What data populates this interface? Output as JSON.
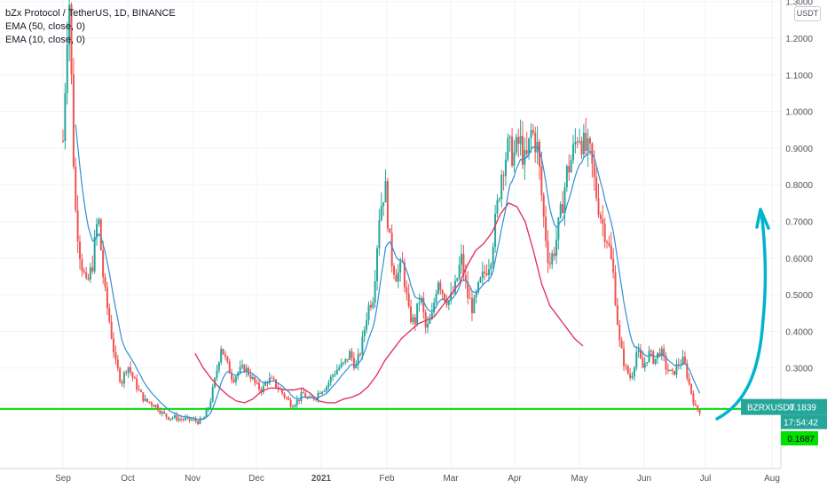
{
  "legend": {
    "title": "bZx Protocol / TetherUS, 1D, BINANCE",
    "ema50": "EMA (50, close, 0)",
    "ema10": "EMA (10, close, 0)"
  },
  "currency_label": "USDT",
  "symbol_tag": "BZRXUSDT",
  "price_tag": "0.1839",
  "countdown": "17:54:42",
  "support_tag": "0.1687",
  "colors": {
    "up": "#26a69a",
    "down": "#ef5350",
    "ema50": "#e0385f",
    "ema10": "#2f8fd6",
    "support": "#00e100",
    "annotation": "#00b5c9",
    "price_tag": "#26a69a",
    "support_tag": "#00e100"
  },
  "chart_data": {
    "type": "candlestick",
    "y_ticks": [
      "0.2000",
      "0.3000",
      "0.4000",
      "0.5000",
      "0.6000",
      "0.7000",
      "0.8000",
      "0.9000",
      "1.0000",
      "1.1000",
      "1.2000",
      "1.3000"
    ],
    "x_ticks": [
      "Sep",
      "Oct",
      "Nov",
      "Dec",
      "2021",
      "Feb",
      "Mar",
      "Apr",
      "May",
      "Jun",
      "Jul",
      "Aug"
    ],
    "ylim": [
      0.16,
      1.3
    ],
    "support_level": 0.1687,
    "last_price": 0.1839,
    "close_series": [
      [
        0,
        0.92
      ],
      [
        0.5,
        1.35
      ],
      [
        1,
        0.75
      ],
      [
        1.5,
        0.6
      ],
      [
        2,
        0.52
      ],
      [
        2.5,
        0.58
      ],
      [
        3,
        0.72
      ],
      [
        3.5,
        0.52
      ],
      [
        4,
        0.42
      ],
      [
        4.5,
        0.31
      ],
      [
        5,
        0.26
      ],
      [
        5.5,
        0.31
      ],
      [
        6,
        0.27
      ],
      [
        6.5,
        0.235
      ],
      [
        7,
        0.21
      ],
      [
        7.5,
        0.205
      ],
      [
        8,
        0.195
      ],
      [
        8.5,
        0.175
      ],
      [
        9,
        0.165
      ],
      [
        9.5,
        0.165
      ],
      [
        10,
        0.16
      ],
      [
        10.5,
        0.16
      ],
      [
        11,
        0.158
      ],
      [
        11.5,
        0.153
      ],
      [
        12,
        0.16
      ],
      [
        12.5,
        0.2
      ],
      [
        13,
        0.27
      ],
      [
        13.5,
        0.36
      ],
      [
        14,
        0.31
      ],
      [
        14.5,
        0.27
      ],
      [
        15,
        0.29
      ],
      [
        15.5,
        0.3
      ],
      [
        16,
        0.28
      ],
      [
        16.5,
        0.25
      ],
      [
        17,
        0.24
      ],
      [
        17.5,
        0.27
      ],
      [
        18,
        0.26
      ],
      [
        18.5,
        0.24
      ],
      [
        19,
        0.22
      ],
      [
        19.5,
        0.2
      ],
      [
        20,
        0.21
      ],
      [
        20.5,
        0.23
      ],
      [
        21,
        0.21
      ],
      [
        21.5,
        0.22
      ],
      [
        22,
        0.24
      ],
      [
        22.5,
        0.25
      ],
      [
        23,
        0.28
      ],
      [
        23.5,
        0.3
      ],
      [
        24,
        0.31
      ],
      [
        24.5,
        0.34
      ],
      [
        25,
        0.3
      ],
      [
        25.5,
        0.36
      ],
      [
        26,
        0.46
      ],
      [
        26.5,
        0.5
      ],
      [
        27,
        0.72
      ],
      [
        27.5,
        0.8
      ],
      [
        28,
        0.6
      ],
      [
        28.5,
        0.55
      ],
      [
        29,
        0.58
      ],
      [
        29.5,
        0.45
      ],
      [
        30,
        0.42
      ],
      [
        30.5,
        0.5
      ],
      [
        31,
        0.4
      ],
      [
        31.5,
        0.44
      ],
      [
        32,
        0.55
      ],
      [
        32.5,
        0.5
      ],
      [
        33,
        0.48
      ],
      [
        33.5,
        0.52
      ],
      [
        34,
        0.6
      ],
      [
        34.5,
        0.5
      ],
      [
        35,
        0.46
      ],
      [
        35.5,
        0.52
      ],
      [
        36,
        0.56
      ],
      [
        36.5,
        0.6
      ],
      [
        37,
        0.72
      ],
      [
        37.5,
        0.85
      ],
      [
        38,
        0.9
      ],
      [
        38.5,
        0.88
      ],
      [
        39,
        0.92
      ],
      [
        39.5,
        0.85
      ],
      [
        40,
        0.95
      ],
      [
        40.5,
        0.9
      ],
      [
        41,
        0.72
      ],
      [
        41.5,
        0.58
      ],
      [
        42,
        0.63
      ],
      [
        42.5,
        0.72
      ],
      [
        43,
        0.83
      ],
      [
        43.5,
        0.88
      ],
      [
        44,
        0.95
      ],
      [
        44.5,
        0.9
      ],
      [
        45,
        0.88
      ],
      [
        45.5,
        0.78
      ],
      [
        46,
        0.7
      ],
      [
        46.5,
        0.65
      ],
      [
        47,
        0.55
      ],
      [
        47.5,
        0.37
      ],
      [
        48,
        0.3
      ],
      [
        48.5,
        0.27
      ],
      [
        49,
        0.35
      ],
      [
        49.5,
        0.3
      ],
      [
        50,
        0.34
      ],
      [
        50.5,
        0.32
      ],
      [
        51,
        0.35
      ],
      [
        51.5,
        0.3
      ],
      [
        52,
        0.28
      ],
      [
        52.5,
        0.31
      ],
      [
        53,
        0.32
      ],
      [
        53.5,
        0.25
      ],
      [
        54,
        0.19
      ],
      [
        54.5,
        0.18
      ],
      [
        55,
        0.1839
      ]
    ],
    "ema50_series": [
      [
        16,
        0.34
      ],
      [
        17,
        0.3
      ],
      [
        18,
        0.27
      ],
      [
        19,
        0.245
      ],
      [
        20,
        0.225
      ],
      [
        21,
        0.21
      ],
      [
        22,
        0.205
      ],
      [
        23,
        0.215
      ],
      [
        24,
        0.235
      ],
      [
        25,
        0.245
      ],
      [
        26,
        0.245
      ],
      [
        27,
        0.24
      ],
      [
        28,
        0.24
      ],
      [
        29,
        0.245
      ],
      [
        30,
        0.23
      ],
      [
        31,
        0.21
      ],
      [
        32,
        0.205
      ],
      [
        33,
        0.205
      ],
      [
        34,
        0.215
      ],
      [
        35,
        0.22
      ],
      [
        36,
        0.23
      ],
      [
        37,
        0.25
      ],
      [
        38,
        0.28
      ],
      [
        39,
        0.32
      ],
      [
        40,
        0.35
      ],
      [
        41,
        0.38
      ],
      [
        42,
        0.4
      ],
      [
        43,
        0.42
      ],
      [
        44,
        0.43
      ],
      [
        45,
        0.44
      ],
      [
        46,
        0.47
      ],
      [
        47,
        0.5
      ],
      [
        48,
        0.53
      ],
      [
        49,
        0.58
      ],
      [
        50,
        0.62
      ],
      [
        51,
        0.64
      ],
      [
        52,
        0.67
      ],
      [
        53,
        0.72
      ],
      [
        54,
        0.75
      ],
      [
        55,
        0.74
      ],
      [
        56,
        0.7
      ],
      [
        57,
        0.62
      ],
      [
        58,
        0.53
      ],
      [
        59,
        0.47
      ],
      [
        60,
        0.44
      ],
      [
        61,
        0.41
      ],
      [
        62,
        0.38
      ],
      [
        63,
        0.36
      ]
    ]
  }
}
